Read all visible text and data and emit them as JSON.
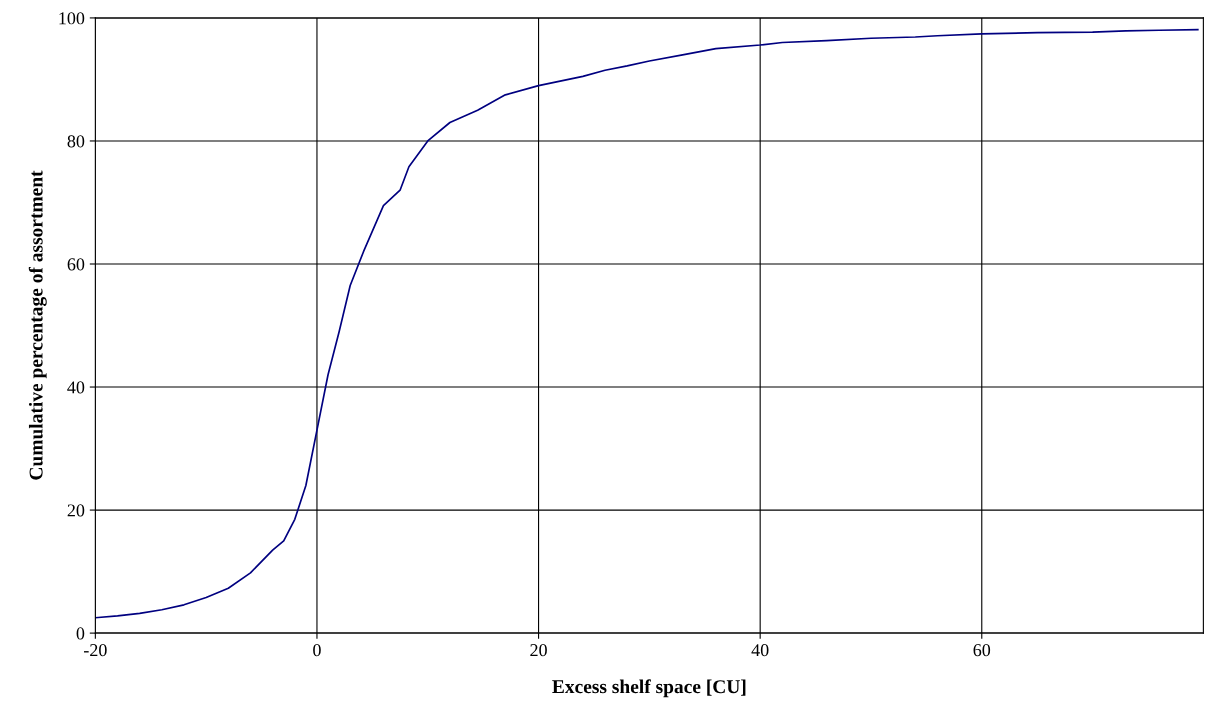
{
  "chart_data": {
    "type": "line",
    "xlabel": "Excess shelf space [CU]",
    "ylabel": "Cumulative percentage of assortment",
    "xlim": [
      -20,
      80
    ],
    "xticks": [
      -20,
      0,
      20,
      40,
      60
    ],
    "ylim": [
      0,
      100
    ],
    "yticks": [
      0,
      20,
      40,
      60,
      80,
      100
    ],
    "grid": true,
    "series": [
      {
        "color": "#000080",
        "x": [
          -20,
          -18,
          -16,
          -14,
          -12,
          -10,
          -8,
          -6,
          -4,
          -3,
          -2,
          -1,
          0,
          1,
          2,
          3,
          4.2,
          6,
          7.5,
          8.3,
          10,
          12,
          14.5,
          17,
          20,
          24,
          26,
          28,
          30,
          33,
          36,
          40,
          42,
          46,
          50,
          54,
          56,
          60,
          65,
          70,
          73,
          76,
          79.5
        ],
        "values": [
          2.5,
          2.8,
          3.2,
          3.8,
          4.6,
          5.8,
          7.3,
          9.8,
          13.5,
          15,
          18.5,
          24,
          33,
          42,
          49,
          56.5,
          62,
          69.5,
          72,
          75.8,
          80,
          83,
          85,
          87.5,
          89,
          90.5,
          91.5,
          92.2,
          93,
          94,
          95,
          95.6,
          96,
          96.3,
          96.7,
          96.9,
          97.1,
          97.4,
          97.6,
          97.7,
          97.9,
          98.0,
          98.1
        ]
      }
    ]
  }
}
